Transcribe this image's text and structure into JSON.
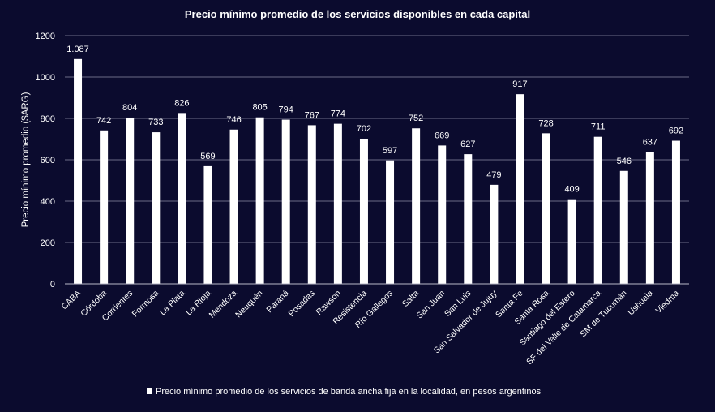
{
  "chart_data": {
    "type": "bar",
    "title": "Precio mínimo promedio de los servicios disponibles en cada capital",
    "ylabel": "Precio mínimo promedio ($ARG)",
    "xlabel": "",
    "ylim": [
      0,
      1200
    ],
    "yticks": [
      0,
      200,
      400,
      600,
      800,
      1000,
      1200
    ],
    "grid": true,
    "legend_position": "bottom",
    "bar_color": "#ffffff",
    "background_color": "#0b0b2e",
    "categories": [
      "CABA",
      "Córdoba",
      "Corrientes",
      "Formosa",
      "La Plata",
      "La Rioja",
      "Mendoza",
      "Neuquén",
      "Paraná",
      "Posadas",
      "Rawson",
      "Resistencia",
      "Río Gallegos",
      "Salta",
      "San Juan",
      "San Luis",
      "San Salvador de Jujuy",
      "Santa Fe",
      "Santa Rosa",
      "Santiago del Estero",
      "SF del Valle de Catamarca",
      "SM de Tucumán",
      "Ushuaia",
      "Viedma"
    ],
    "series": [
      {
        "name": "Precio mínimo promedio de los servicios de banda ancha fija en la localidad, en pesos argentinos",
        "values": [
          1087,
          742,
          804,
          733,
          826,
          569,
          746,
          805,
          794,
          767,
          774,
          702,
          597,
          752,
          669,
          627,
          479,
          917,
          728,
          409,
          711,
          546,
          637,
          692
        ],
        "value_labels": [
          "1.087",
          "742",
          "804",
          "733",
          "826",
          "569",
          "746",
          "805",
          "794",
          "767",
          "774",
          "702",
          "597",
          "752",
          "669",
          "627",
          "479",
          "917",
          "728",
          "409",
          "711",
          "546",
          "637",
          "692"
        ]
      }
    ]
  }
}
